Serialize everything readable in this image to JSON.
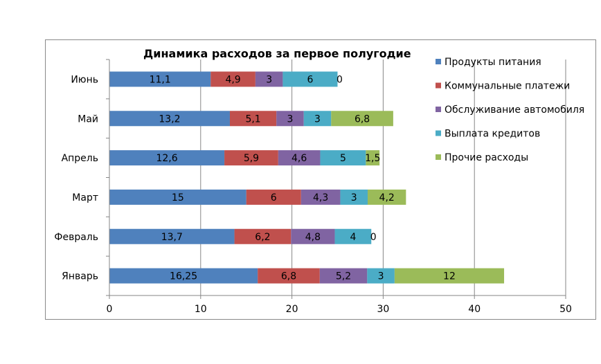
{
  "chart_data": {
    "type": "bar",
    "orientation": "horizontal",
    "stacked": true,
    "title": "Динамика расходов за первое полугодие",
    "categories": [
      "Январь",
      "Февраль",
      "Март",
      "Апрель",
      "Май",
      "Июнь"
    ],
    "series": [
      {
        "name": "Продукты питания",
        "color": "#4f81bd",
        "values": [
          16.25,
          13.7,
          15,
          12.6,
          13.2,
          11.1
        ],
        "labels": [
          "16,25",
          "13,7",
          "15",
          "12,6",
          "13,2",
          "11,1"
        ]
      },
      {
        "name": "Коммунальные платежи",
        "color": "#c0504d",
        "values": [
          6.8,
          6.2,
          6,
          5.9,
          5.1,
          4.9
        ],
        "labels": [
          "6,8",
          "6,2",
          "6",
          "5,9",
          "5,1",
          "4,9"
        ]
      },
      {
        "name": "Обслуживание автомобиля",
        "color": "#8064a2",
        "values": [
          5.2,
          4.8,
          4.3,
          4.6,
          3,
          3
        ],
        "labels": [
          "5,2",
          "4,8",
          "4,3",
          "4,6",
          "3",
          "3"
        ]
      },
      {
        "name": "Выплата кредитов",
        "color": "#4bacc6",
        "values": [
          3,
          4,
          3,
          5,
          3,
          6
        ],
        "labels": [
          "3",
          "4",
          "3",
          "5",
          "3",
          "6"
        ]
      },
      {
        "name": "Прочие расходы",
        "color": "#9bbb59",
        "values": [
          12,
          0,
          4.2,
          1.5,
          6.8,
          0
        ],
        "labels": [
          "12",
          "0",
          "4,2",
          "1,5",
          "6,8",
          "0"
        ]
      }
    ],
    "xlim": [
      0,
      50
    ],
    "xticks": [
      0,
      10,
      20,
      30,
      40,
      50
    ],
    "xlabel": "",
    "ylabel": "",
    "grid": "vertical",
    "legend_position": "right"
  }
}
